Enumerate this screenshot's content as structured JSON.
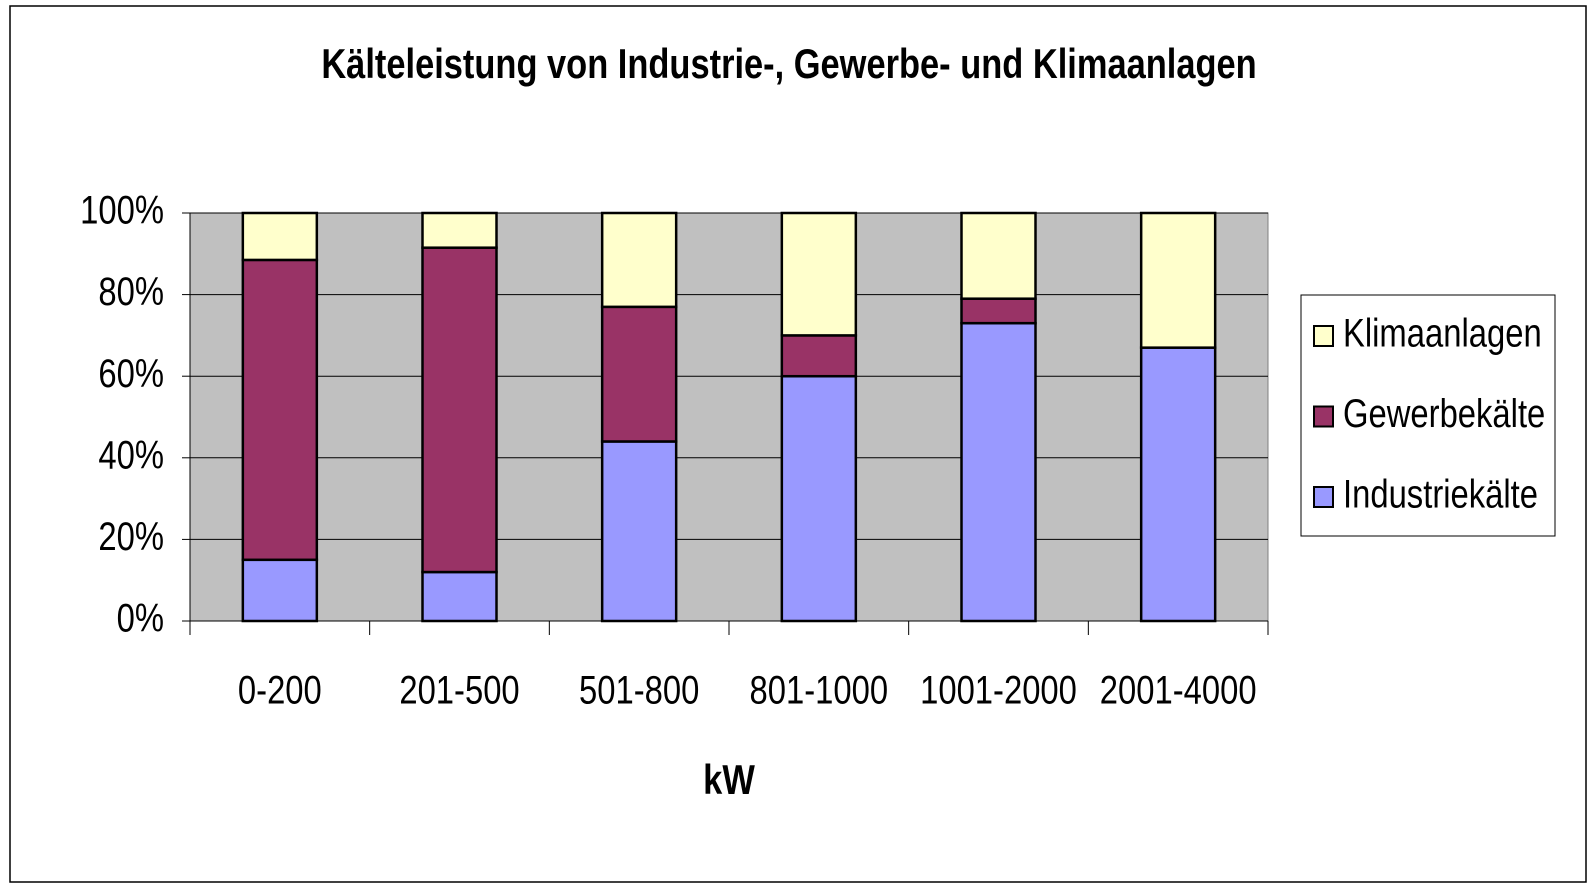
{
  "chart_data": {
    "type": "stacked_bar",
    "title": "Kälteleistung von Industrie-, Gewerbe- und Klimaanlagen",
    "x_label": "kW",
    "categories": [
      "0-200",
      "201-500",
      "501-800",
      "801-1000",
      "1001-2000",
      "2001-4000"
    ],
    "series": [
      {
        "name": "Industriekälte",
        "color": "#9999ff",
        "values": [
          15,
          12,
          44,
          60,
          73,
          67
        ]
      },
      {
        "name": "Gewerbekälte",
        "color": "#993366",
        "values": [
          73.5,
          79.5,
          33,
          10,
          6,
          0
        ]
      },
      {
        "name": "Klimaanlagen",
        "color": "#ffffcc",
        "values": [
          11.5,
          8.5,
          23,
          30,
          21,
          33
        ]
      }
    ],
    "ylim": [
      0,
      100
    ],
    "yticks": [
      {
        "value": 0,
        "label": "0%"
      },
      {
        "value": 20,
        "label": "20%"
      },
      {
        "value": 40,
        "label": "40%"
      },
      {
        "value": 60,
        "label": "60%"
      },
      {
        "value": 80,
        "label": "80%"
      },
      {
        "value": 100,
        "label": "100%"
      }
    ],
    "grid": true,
    "plot_background": "#c0c0c0",
    "legend": "right"
  }
}
